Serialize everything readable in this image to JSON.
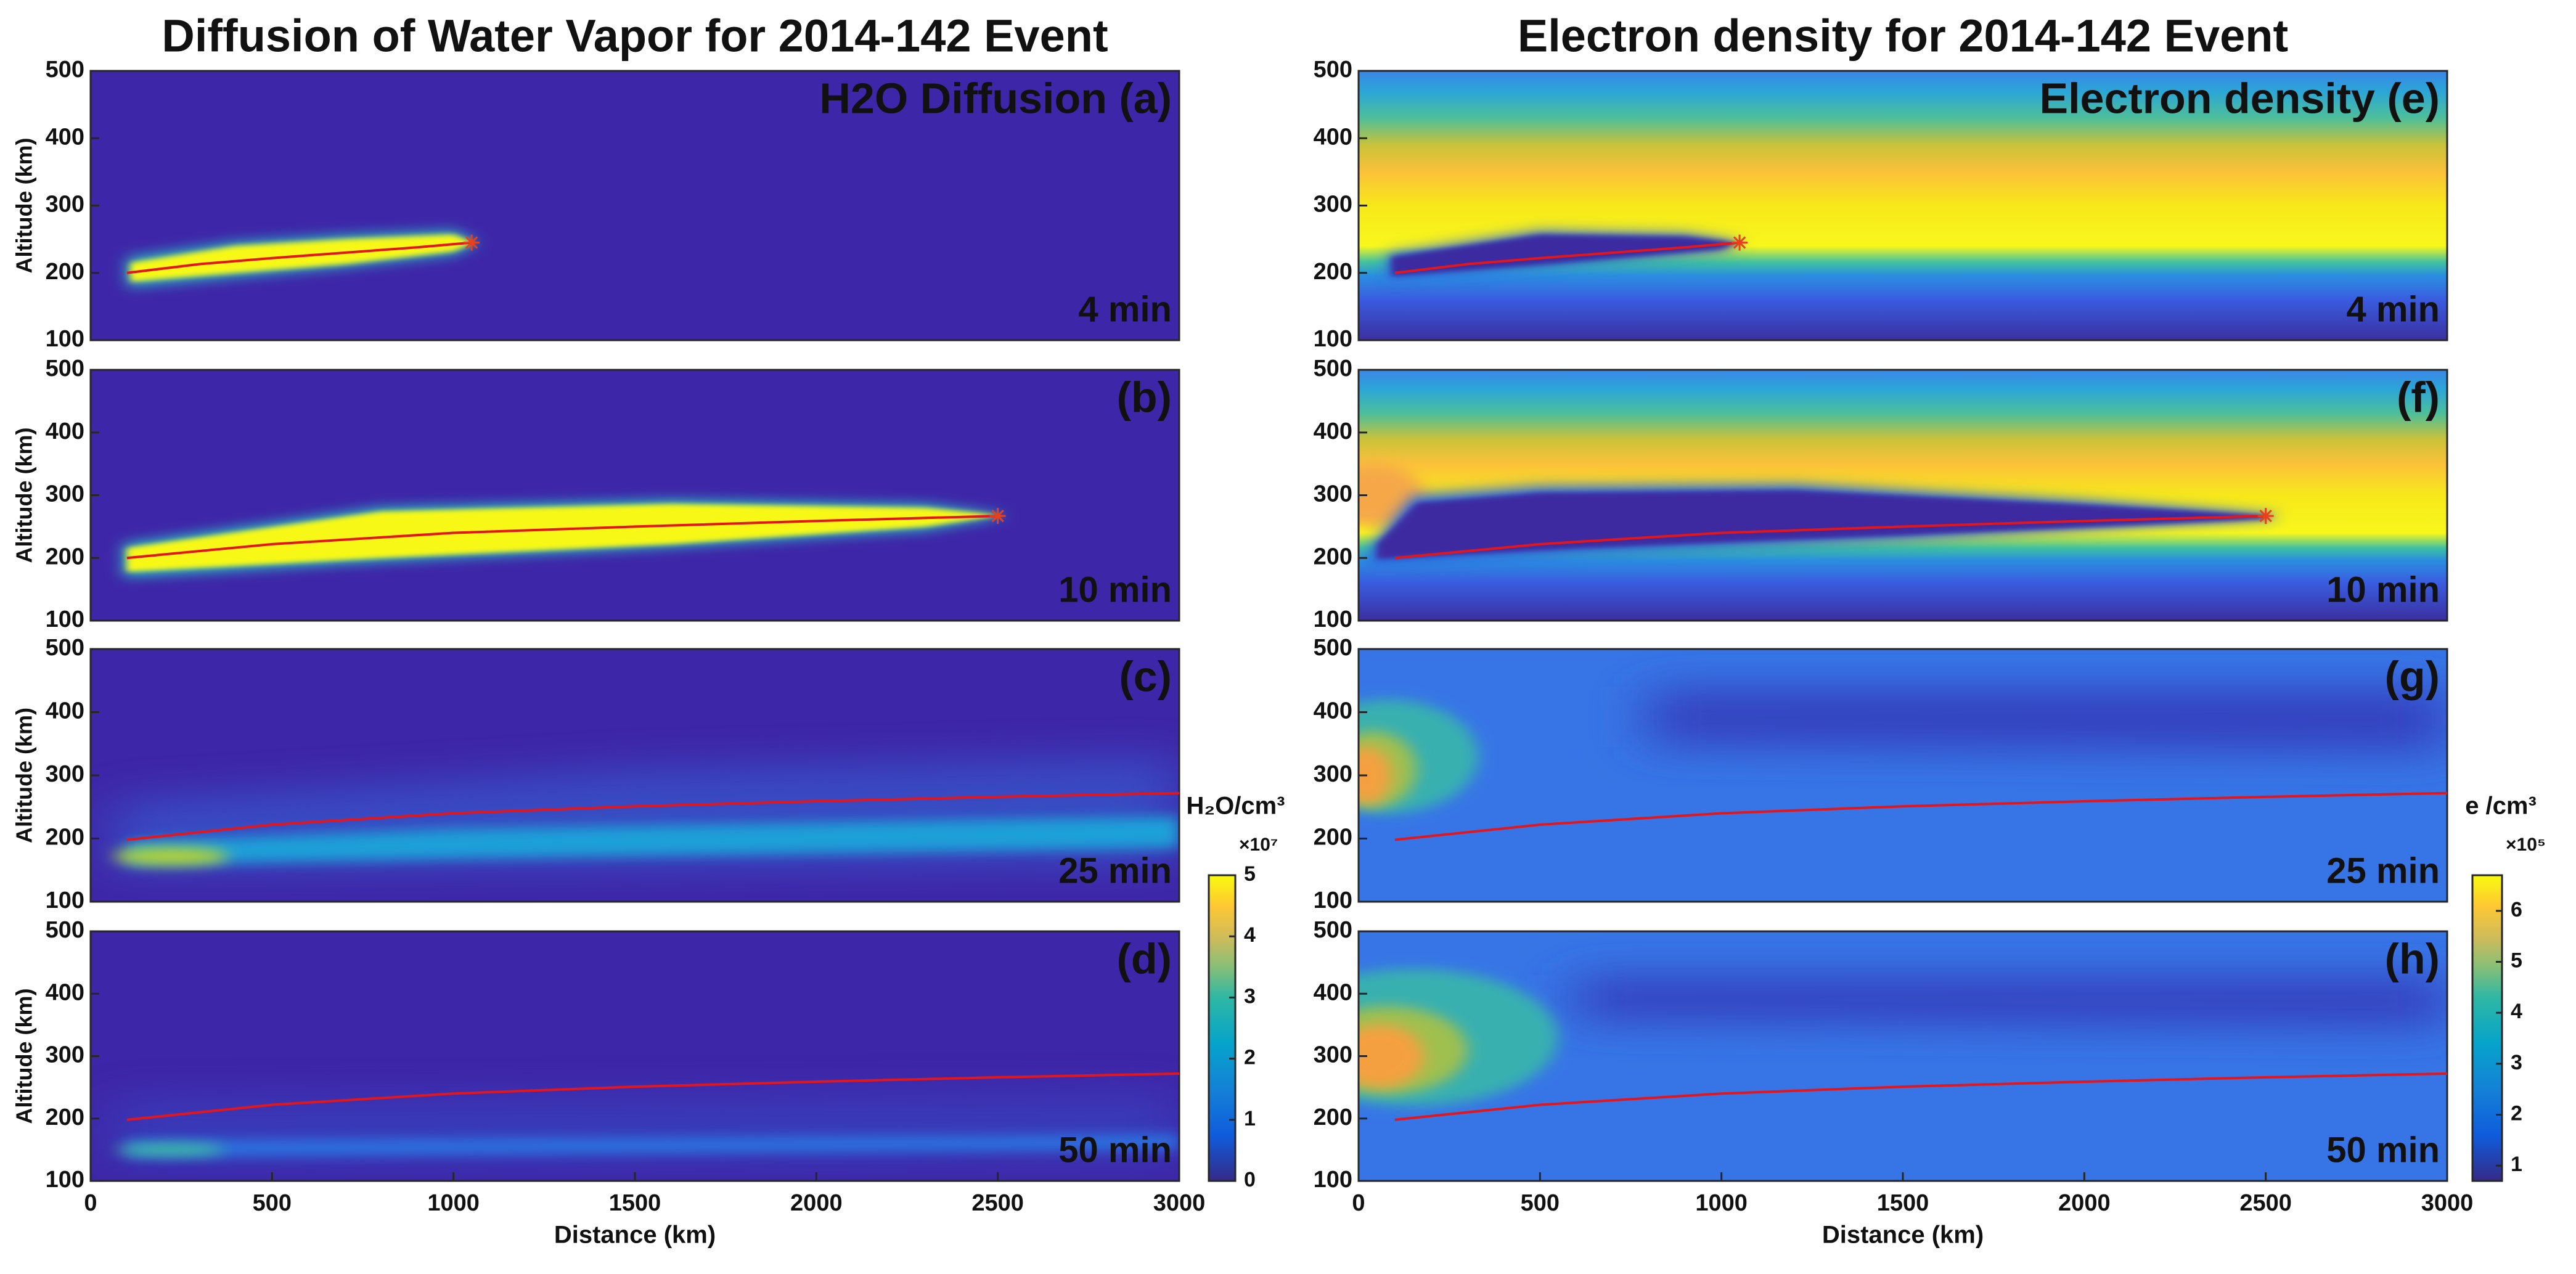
{
  "chart_data": [
    {
      "type": "heatmap",
      "title": "Diffusion of Water Vapor for 2014-142 Event",
      "label": "H2O Diffusion (a)",
      "time": "4 min",
      "ylabel": "Altitude (km)",
      "xlim": [
        0,
        3000
      ],
      "ylim": [
        100,
        500
      ],
      "yticks": [
        100,
        200,
        300,
        400,
        500
      ],
      "trajectory": {
        "color": "#e3161c",
        "end_marker": true,
        "x": [
          100,
          300,
          500,
          700,
          900,
          1050
        ],
        "y": [
          200,
          213,
          222,
          230,
          238,
          245
        ]
      }
    },
    {
      "type": "heatmap",
      "label": "(b)",
      "time": "10 min",
      "ylabel": "Altitude (km)",
      "xlim": [
        0,
        3000
      ],
      "ylim": [
        100,
        500
      ],
      "yticks": [
        100,
        200,
        300,
        400,
        500
      ],
      "trajectory": {
        "color": "#e3161c",
        "end_marker": true,
        "x": [
          100,
          500,
          1000,
          1500,
          2000,
          2500
        ],
        "y": [
          200,
          222,
          240,
          250,
          259,
          267
        ]
      }
    },
    {
      "type": "heatmap",
      "label": "(c)",
      "time": "25 min",
      "ylabel": "Altitude (km)",
      "xlim": [
        0,
        3000
      ],
      "ylim": [
        100,
        500
      ],
      "yticks": [
        100,
        200,
        300,
        400,
        500
      ],
      "trajectory": {
        "color": "#e3161c",
        "end_marker": false,
        "x": [
          100,
          500,
          1000,
          1500,
          2000,
          2500,
          3000
        ],
        "y": [
          198,
          222,
          240,
          251,
          259,
          266,
          272
        ]
      }
    },
    {
      "type": "heatmap",
      "label": "(d)",
      "time": "50 min",
      "ylabel": "Altitude (km)",
      "xlabel": "Distance  (km)",
      "xlim": [
        0,
        3000
      ],
      "ylim": [
        100,
        500
      ],
      "xticks": [
        0,
        500,
        1000,
        1500,
        2000,
        2500,
        3000
      ],
      "yticks": [
        100,
        200,
        300,
        400,
        500
      ],
      "trajectory": {
        "color": "#e3161c",
        "end_marker": false,
        "x": [
          100,
          500,
          1000,
          1500,
          2000,
          2500,
          3000
        ],
        "y": [
          198,
          222,
          240,
          251,
          259,
          266,
          272
        ]
      }
    },
    {
      "type": "heatmap",
      "title": "Electron density for 2014-142 Event",
      "label": "Electron density (e)",
      "time": "4 min",
      "xlim": [
        0,
        3000
      ],
      "ylim": [
        100,
        500
      ],
      "yticks": [
        100,
        200,
        300,
        400,
        500
      ],
      "trajectory": {
        "color": "#e3161c",
        "end_marker": true,
        "x": [
          100,
          300,
          500,
          700,
          900,
          1050
        ],
        "y": [
          200,
          213,
          222,
          230,
          238,
          245
        ]
      }
    },
    {
      "type": "heatmap",
      "label": "(f)",
      "time": "10 min",
      "xlim": [
        0,
        3000
      ],
      "ylim": [
        100,
        500
      ],
      "yticks": [
        100,
        200,
        300,
        400,
        500
      ],
      "trajectory": {
        "color": "#e3161c",
        "end_marker": true,
        "x": [
          100,
          500,
          1000,
          1500,
          2000,
          2500
        ],
        "y": [
          200,
          222,
          240,
          250,
          259,
          267
        ]
      }
    },
    {
      "type": "heatmap",
      "label": "(g)",
      "time": "25 min",
      "xlim": [
        0,
        3000
      ],
      "ylim": [
        100,
        500
      ],
      "yticks": [
        100,
        200,
        300,
        400,
        500
      ],
      "trajectory": {
        "color": "#e3161c",
        "end_marker": false,
        "x": [
          100,
          500,
          1000,
          1500,
          2000,
          2500,
          3000
        ],
        "y": [
          198,
          222,
          240,
          251,
          259,
          266,
          272
        ]
      }
    },
    {
      "type": "heatmap",
      "label": "(h)",
      "time": "50 min",
      "xlabel": "Distance (km)",
      "xlim": [
        0,
        3000
      ],
      "ylim": [
        100,
        500
      ],
      "xticks": [
        0,
        500,
        1000,
        1500,
        2000,
        2500,
        3000
      ],
      "yticks": [
        100,
        200,
        300,
        400,
        500
      ],
      "trajectory": {
        "color": "#e3161c",
        "end_marker": false,
        "x": [
          100,
          500,
          1000,
          1500,
          2000,
          2500,
          3000
        ],
        "y": [
          198,
          222,
          240,
          251,
          259,
          266,
          272
        ]
      }
    },
    {
      "type": "colorbar",
      "label": "H₂O/cm³",
      "multiplier": "×10⁷",
      "ylim": [
        0,
        5
      ],
      "yticks": [
        0,
        1,
        2,
        3,
        4,
        5
      ]
    },
    {
      "type": "colorbar",
      "label": "e /cm³",
      "multiplier": "×10⁵",
      "ylim": [
        0.7,
        6.7
      ],
      "yticks": [
        1,
        2,
        3,
        4,
        5,
        6
      ]
    }
  ]
}
